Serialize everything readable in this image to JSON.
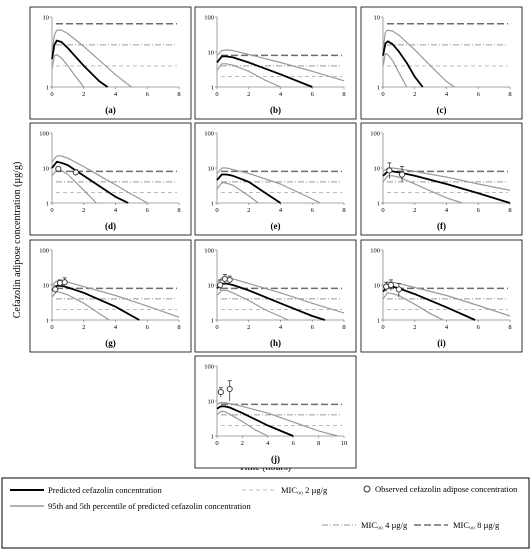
{
  "figure": {
    "ylabel": "Cefazolin adipose concentration (µg/g)",
    "xlabel": "Time (hours)"
  },
  "colors": {
    "predicted": "#000000",
    "percentile": "#999999",
    "mic2": "#bdbdbd",
    "mic4": "#9a9a9a",
    "mic8": "#6e6e6e",
    "observed_fill": "#ffffff",
    "observed_stroke": "#333333",
    "frame": "#000000"
  },
  "legend": {
    "predicted": "Predicted cefazolin concentration",
    "percentile": "95th and 5th percentile of predicted cefazolin concentration",
    "mic2": "MIC₉₀ 2 µg/g",
    "mic4": "MIC₉₀ 4 µg/g",
    "mic8": "MIC₉₀ 8 µg/g",
    "observed": "Observed cefazolin adipose concentration"
  },
  "chart_data": [
    {
      "id": "a",
      "label": "(a)",
      "type": "line",
      "yscale": "log",
      "xlim": [
        0,
        8
      ],
      "ylim": [
        1,
        10
      ],
      "xticks": [
        0,
        2,
        4,
        6,
        8
      ],
      "yticks": [
        "1",
        "10"
      ],
      "mic": [
        2,
        4,
        8
      ],
      "series": [
        {
          "role": "upper",
          "x": [
            0,
            0.15,
            0.3,
            0.6,
            1.0,
            2.0,
            3.0,
            4.0,
            5.0
          ],
          "y": [
            3.0,
            5.5,
            6.5,
            6.5,
            5.8,
            3.8,
            2.4,
            1.5,
            1.0
          ]
        },
        {
          "role": "median",
          "x": [
            0,
            0.15,
            0.3,
            0.6,
            1.0,
            2.0,
            3.0,
            3.5
          ],
          "y": [
            2.5,
            4.0,
            4.6,
            4.4,
            3.6,
            2.0,
            1.2,
            1.0
          ]
        },
        {
          "role": "lower",
          "x": [
            0,
            0.15,
            0.3,
            0.6,
            1.0,
            1.5,
            2.0
          ],
          "y": [
            1.8,
            2.8,
            2.9,
            2.6,
            2.0,
            1.4,
            1.0
          ]
        }
      ],
      "observed": []
    },
    {
      "id": "b",
      "label": "(b)",
      "type": "line",
      "yscale": "log",
      "xlim": [
        0,
        8
      ],
      "ylim": [
        1,
        100
      ],
      "xticks": [
        0,
        2,
        4,
        6,
        8
      ],
      "yticks": [
        "1",
        "10",
        "100"
      ],
      "mic": [
        2,
        4,
        8
      ],
      "series": [
        {
          "role": "upper",
          "x": [
            0,
            0.3,
            0.6,
            1.0,
            2.0,
            4.0,
            6.0,
            8.0
          ],
          "y": [
            8,
            11,
            11.5,
            11,
            8.5,
            5.0,
            2.8,
            1.5
          ]
        },
        {
          "role": "median",
          "x": [
            0,
            0.3,
            0.6,
            1.0,
            2.0,
            4.0,
            6.0
          ],
          "y": [
            5,
            7.5,
            7.5,
            7,
            5,
            2.3,
            1.0
          ]
        },
        {
          "role": "lower",
          "x": [
            0,
            0.3,
            0.6,
            1.0,
            2.0,
            3.0,
            4.0
          ],
          "y": [
            3,
            4.6,
            4.6,
            4.2,
            2.8,
            1.6,
            1.0
          ]
        }
      ],
      "observed": []
    },
    {
      "id": "c",
      "label": "(c)",
      "type": "line",
      "yscale": "log",
      "xlim": [
        0,
        8
      ],
      "ylim": [
        1,
        10
      ],
      "xticks": [
        0,
        2,
        4,
        6,
        8
      ],
      "yticks": [
        "1",
        "10"
      ],
      "mic": [
        2,
        4,
        8
      ],
      "series": [
        {
          "role": "upper",
          "x": [
            0,
            0.15,
            0.3,
            0.6,
            1.0,
            2.0,
            3.0,
            4.0,
            4.5
          ],
          "y": [
            3.5,
            6.0,
            6.5,
            6.3,
            5.5,
            3.4,
            2.0,
            1.2,
            1.0
          ]
        },
        {
          "role": "median",
          "x": [
            0,
            0.15,
            0.3,
            0.6,
            1.0,
            1.5,
            2.0,
            2.5
          ],
          "y": [
            2.8,
            4.2,
            4.5,
            4.1,
            3.2,
            2.2,
            1.4,
            1.0
          ]
        },
        {
          "role": "lower",
          "x": [
            0,
            0.15,
            0.3,
            0.6,
            1.0,
            1.5
          ],
          "y": [
            2.0,
            3.0,
            2.9,
            2.4,
            1.6,
            1.0
          ]
        }
      ],
      "observed": []
    },
    {
      "id": "d",
      "label": "(d)",
      "type": "line",
      "yscale": "log",
      "xlim": [
        0,
        8
      ],
      "ylim": [
        1,
        100
      ],
      "xticks": [
        0,
        2,
        4,
        6,
        8
      ],
      "yticks": [
        "1",
        "10",
        "100"
      ],
      "mic": [
        2,
        4,
        8
      ],
      "series": [
        {
          "role": "upper",
          "x": [
            0,
            0.3,
            0.6,
            1.0,
            2.0,
            3.0,
            4.0,
            5.0,
            6.0
          ],
          "y": [
            15,
            22,
            22,
            19,
            11,
            6,
            3.3,
            1.8,
            1.0
          ]
        },
        {
          "role": "median",
          "x": [
            0,
            0.3,
            0.6,
            1.0,
            2.0,
            3.0,
            4.0,
            4.8
          ],
          "y": [
            10,
            15,
            14,
            12,
            6,
            3,
            1.5,
            1.0
          ]
        },
        {
          "role": "lower",
          "x": [
            0,
            0.3,
            0.6,
            1.0,
            2.0,
            2.8
          ],
          "y": [
            6,
            9,
            8.5,
            6.5,
            2.3,
            1.0
          ]
        }
      ],
      "observed": [
        {
          "x": 0.4,
          "y": 9.5,
          "ylo": 8.5,
          "yhi": 10.5
        },
        {
          "x": 1.5,
          "y": 7.5,
          "ylo": 6.0,
          "yhi": 9.0
        }
      ]
    },
    {
      "id": "e",
      "label": "(e)",
      "type": "line",
      "yscale": "log",
      "xlim": [
        0,
        8
      ],
      "ylim": [
        1,
        100
      ],
      "xticks": [
        0,
        2,
        4,
        6,
        8
      ],
      "yticks": [
        "1",
        "10",
        "100"
      ],
      "mic": [
        2,
        4,
        8
      ],
      "series": [
        {
          "role": "upper",
          "x": [
            0,
            0.3,
            0.6,
            1.0,
            2.0,
            4.0,
            6.0,
            6.5
          ],
          "y": [
            7,
            10,
            10,
            9,
            7,
            3.5,
            1.3,
            1.0
          ]
        },
        {
          "role": "median",
          "x": [
            0,
            0.3,
            0.6,
            1.0,
            2.0,
            3.0,
            4.0
          ],
          "y": [
            4.5,
            6.5,
            6.5,
            6,
            4,
            2,
            1.0
          ]
        },
        {
          "role": "lower",
          "x": [
            0,
            0.3,
            0.6,
            1.0,
            2.0,
            2.6
          ],
          "y": [
            2.5,
            3.8,
            3.7,
            3.2,
            1.6,
            1.0
          ]
        }
      ],
      "observed": []
    },
    {
      "id": "f",
      "label": "(f)",
      "type": "line",
      "yscale": "log",
      "xlim": [
        0,
        8
      ],
      "ylim": [
        1,
        100
      ],
      "xticks": [
        0,
        2,
        4,
        6,
        8
      ],
      "yticks": [
        "1",
        "10",
        "100"
      ],
      "mic": [
        2,
        4,
        8
      ],
      "series": [
        {
          "role": "upper",
          "x": [
            0,
            0.3,
            0.6,
            1.0,
            2.0,
            4.0,
            6.0,
            8.0
          ],
          "y": [
            8,
            10,
            10,
            9.5,
            8,
            5.5,
            3.5,
            2.3
          ]
        },
        {
          "role": "median",
          "x": [
            0,
            0.3,
            0.6,
            1.0,
            2.0,
            4.0,
            6.0,
            8.0
          ],
          "y": [
            6,
            8,
            8,
            7.5,
            6,
            3.5,
            1.9,
            1.0
          ]
        },
        {
          "role": "lower",
          "x": [
            0,
            0.3,
            0.6,
            1.0,
            2.0,
            4.0,
            5.0
          ],
          "y": [
            4,
            6,
            6,
            5.5,
            3.5,
            1.4,
            1.0
          ]
        }
      ],
      "observed": [
        {
          "x": 0.4,
          "y": 8.5,
          "ylo": 5.0,
          "yhi": 14.0
        },
        {
          "x": 1.2,
          "y": 6.5,
          "ylo": 4.0,
          "yhi": 11.0
        }
      ]
    },
    {
      "id": "g",
      "label": "(g)",
      "type": "line",
      "yscale": "log",
      "xlim": [
        0,
        8
      ],
      "ylim": [
        1,
        100
      ],
      "xticks": [
        0,
        2,
        4,
        6,
        8
      ],
      "yticks": [
        "1",
        "10",
        "100"
      ],
      "mic": [
        2,
        4,
        8
      ],
      "series": [
        {
          "role": "upper",
          "x": [
            0,
            0.3,
            0.6,
            1.0,
            2.0,
            4.0,
            6.0,
            8.0
          ],
          "y": [
            10,
            13,
            13,
            12,
            9,
            5,
            2.5,
            1.2
          ]
        },
        {
          "role": "median",
          "x": [
            0,
            0.3,
            0.6,
            1.0,
            2.0,
            4.0,
            5.5
          ],
          "y": [
            7,
            9.5,
            9.5,
            8.5,
            6,
            2.4,
            1.0
          ]
        },
        {
          "role": "lower",
          "x": [
            0,
            0.3,
            0.6,
            1.0,
            2.0,
            3.0,
            3.6
          ],
          "y": [
            4.5,
            6.5,
            6,
            5.2,
            3,
            1.5,
            1.0
          ]
        }
      ],
      "observed": [
        {
          "x": 0.2,
          "y": 7.5,
          "ylo": 6.0,
          "yhi": 9.5
        },
        {
          "x": 0.5,
          "y": 11.5,
          "ylo": 9.0,
          "yhi": 14.0
        },
        {
          "x": 0.8,
          "y": 12.0,
          "ylo": 9.0,
          "yhi": 16.0
        }
      ]
    },
    {
      "id": "h",
      "label": "(h)",
      "type": "line",
      "yscale": "log",
      "xlim": [
        0,
        8
      ],
      "ylim": [
        1,
        100
      ],
      "xticks": [
        0,
        2,
        4,
        6,
        8
      ],
      "yticks": [
        "1",
        "10",
        "100"
      ],
      "mic": [
        2,
        4,
        8
      ],
      "series": [
        {
          "role": "upper",
          "x": [
            0,
            0.3,
            0.6,
            1.0,
            2.0,
            4.0,
            6.0,
            8.0
          ],
          "y": [
            12,
            16,
            16,
            15,
            11,
            6,
            3,
            1.6
          ]
        },
        {
          "role": "median",
          "x": [
            0,
            0.3,
            0.6,
            1.0,
            2.0,
            4.0,
            6.0,
            6.8
          ],
          "y": [
            8,
            11,
            11,
            10,
            7,
            3,
            1.3,
            1.0
          ]
        },
        {
          "role": "lower",
          "x": [
            0,
            0.3,
            0.6,
            1.0,
            2.0,
            3.0,
            4.5
          ],
          "y": [
            5,
            7,
            7,
            6,
            3.6,
            2,
            1.0
          ]
        }
      ],
      "observed": [
        {
          "x": 0.2,
          "y": 10.0,
          "ylo": 7.0,
          "yhi": 14.0
        },
        {
          "x": 0.5,
          "y": 15.0,
          "ylo": 11.0,
          "yhi": 20.0
        },
        {
          "x": 0.8,
          "y": 14.0,
          "ylo": 10.0,
          "yhi": 18.0
        }
      ]
    },
    {
      "id": "i",
      "label": "(i)",
      "type": "line",
      "yscale": "log",
      "xlim": [
        0,
        8
      ],
      "ylim": [
        1,
        100
      ],
      "xticks": [
        0,
        2,
        4,
        6,
        8
      ],
      "yticks": [
        "1",
        "10",
        "100"
      ],
      "mic": [
        2,
        4,
        8
      ],
      "series": [
        {
          "role": "upper",
          "x": [
            0,
            0.3,
            0.6,
            1.0,
            2.0,
            4.0,
            6.0,
            8.0
          ],
          "y": [
            9,
            12,
            12,
            11,
            8.5,
            5,
            2.6,
            1.3
          ]
        },
        {
          "role": "median",
          "x": [
            0,
            0.3,
            0.6,
            1.0,
            2.0,
            4.0,
            5.8
          ],
          "y": [
            6.5,
            9,
            9,
            8,
            5.5,
            2.3,
            1.0
          ]
        },
        {
          "role": "lower",
          "x": [
            0,
            0.3,
            0.6,
            1.0,
            2.0,
            3.0,
            3.8
          ],
          "y": [
            4,
            6,
            5.6,
            5,
            2.8,
            1.5,
            1.0
          ]
        }
      ],
      "observed": [
        {
          "x": 0.2,
          "y": 9.0,
          "ylo": 6.5,
          "yhi": 12.0
        },
        {
          "x": 0.5,
          "y": 10.0,
          "ylo": 7.0,
          "yhi": 14.0
        },
        {
          "x": 1.0,
          "y": 7.5,
          "ylo": 4.5,
          "yhi": 11.0
        }
      ]
    },
    {
      "id": "j",
      "label": "(j)",
      "type": "line",
      "yscale": "log",
      "xlim": [
        0,
        10
      ],
      "ylim": [
        1,
        100
      ],
      "xticks": [
        0,
        2,
        4,
        6,
        8,
        10
      ],
      "yticks": [
        "1",
        "10",
        "100"
      ],
      "mic": [
        2,
        4,
        8
      ],
      "series": [
        {
          "role": "upper",
          "x": [
            0,
            0.3,
            0.6,
            1.0,
            2.0,
            4.0,
            6.0,
            8.0,
            9.5
          ],
          "y": [
            8,
            9,
            9,
            8.5,
            7,
            4.5,
            2.5,
            1.4,
            1.0
          ]
        },
        {
          "role": "median",
          "x": [
            0,
            0.3,
            0.6,
            1.0,
            2.0,
            4.0,
            6.0
          ],
          "y": [
            6,
            7,
            7,
            6.5,
            4.5,
            2,
            1.0
          ]
        },
        {
          "role": "lower",
          "x": [
            0,
            0.3,
            0.6,
            1.0,
            2.0,
            3.0,
            4.0
          ],
          "y": [
            4,
            5,
            5,
            4.2,
            2.6,
            1.5,
            1.0
          ]
        }
      ],
      "observed": [
        {
          "x": 0.3,
          "y": 18.0,
          "ylo": 13.0,
          "yhi": 24.0
        },
        {
          "x": 1.0,
          "y": 22.0,
          "ylo": 10.0,
          "yhi": 38.0
        }
      ]
    }
  ]
}
